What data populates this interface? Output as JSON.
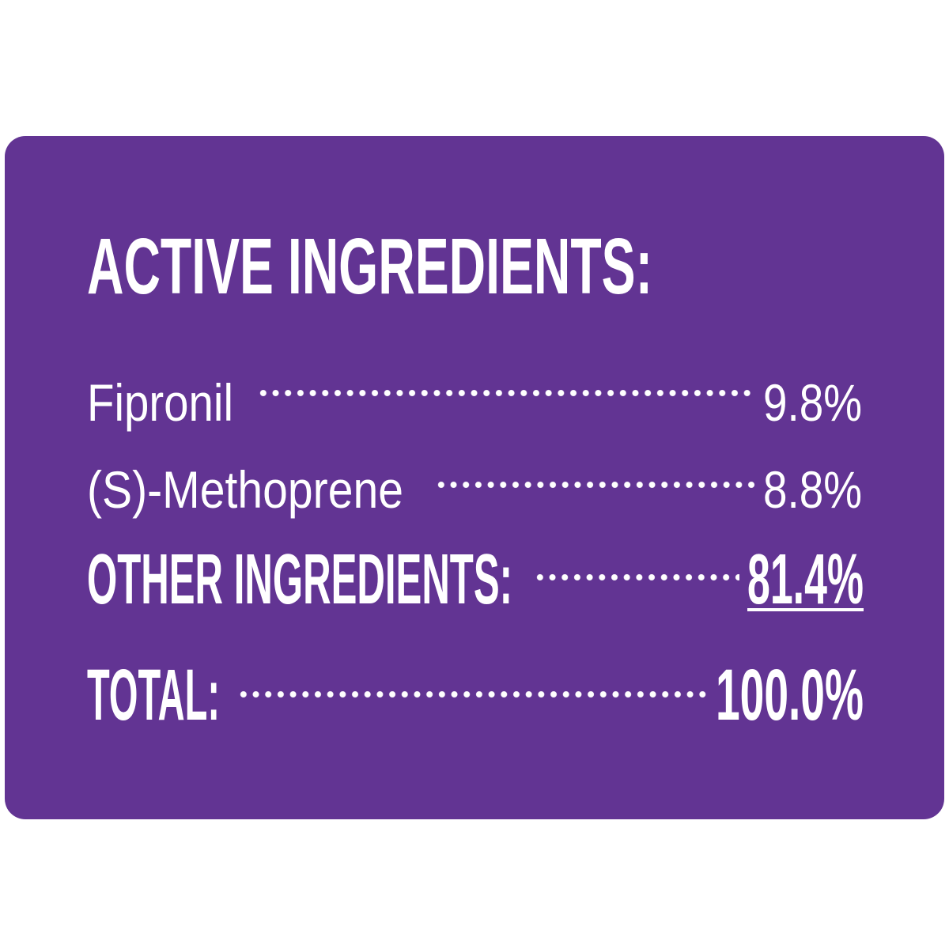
{
  "background_color": "#623493",
  "title": "ACTIVE INGREDIENTS:",
  "rows": [
    {
      "label": "Fipronil",
      "value": "9.8%"
    },
    {
      "label": "(S)-Methoprene",
      "value": "8.8%"
    },
    {
      "label": "OTHER INGREDIENTS:",
      "value": "81.4%"
    },
    {
      "label": "TOTAL:",
      "value": "100.0%"
    }
  ]
}
